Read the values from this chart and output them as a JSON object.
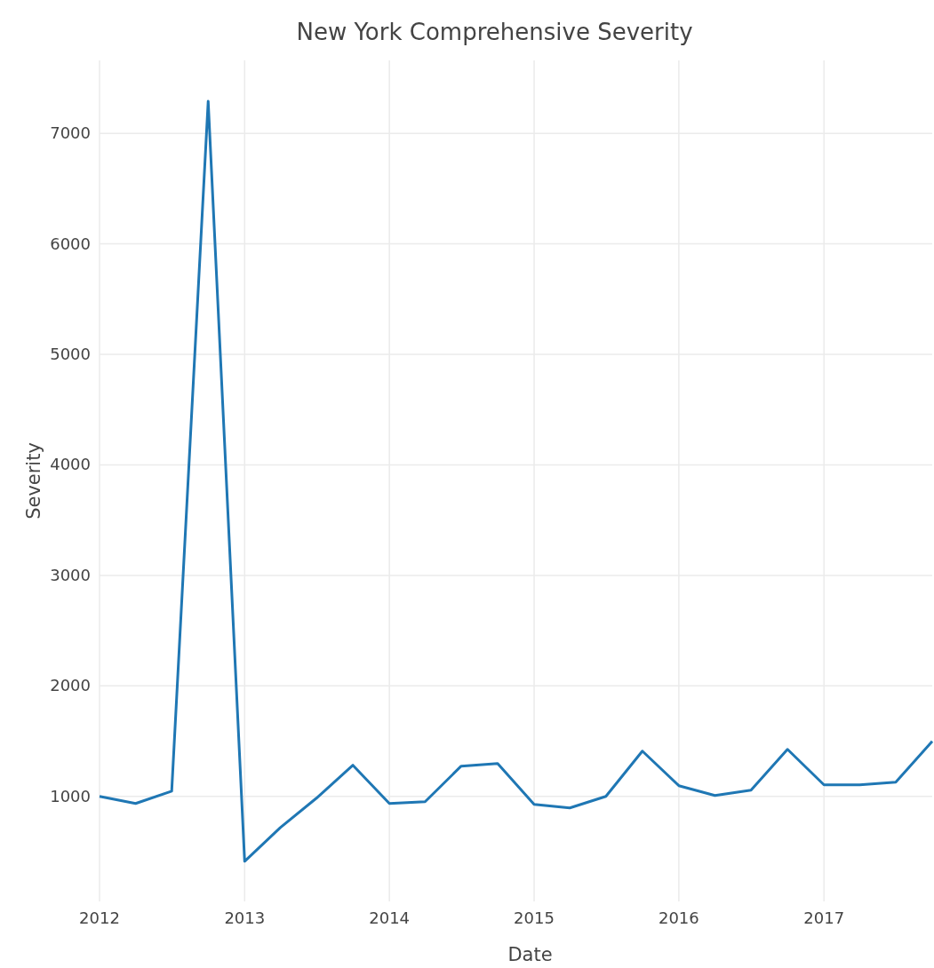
{
  "chart_data": {
    "type": "line",
    "title": "New York Comprehensive Severity",
    "xlabel": "Date",
    "ylabel": "Severity",
    "x": [
      "2012-01",
      "2012-04",
      "2012-07",
      "2012-10",
      "2013-01",
      "2013-04",
      "2013-07",
      "2013-10",
      "2014-01",
      "2014-04",
      "2014-07",
      "2014-10",
      "2015-01",
      "2015-04",
      "2015-07",
      "2015-10",
      "2016-01",
      "2016-04",
      "2016-07",
      "2016-10",
      "2017-01",
      "2017-04",
      "2017-07",
      "2017-10"
    ],
    "series": [
      {
        "color": "#1f77b4",
        "values": [
          1000,
          936,
          1048,
          7290,
          413,
          718,
          984,
          1282,
          936,
          952,
          1274,
          1298,
          928,
          896,
          1000,
          1410,
          1097,
          1008,
          1056,
          1426,
          1105,
          1105,
          1129,
          1499
        ]
      }
    ],
    "xlim": [
      "2012-01",
      "2017-10"
    ],
    "xticks": [
      "2012",
      "2013",
      "2014",
      "2015",
      "2016",
      "2017"
    ],
    "ylim": [
      50,
      7660
    ],
    "yticks": [
      1000,
      2000,
      3000,
      4000,
      5000,
      6000,
      7000
    ],
    "grid": true,
    "line_style": "solid",
    "marker": "none"
  }
}
